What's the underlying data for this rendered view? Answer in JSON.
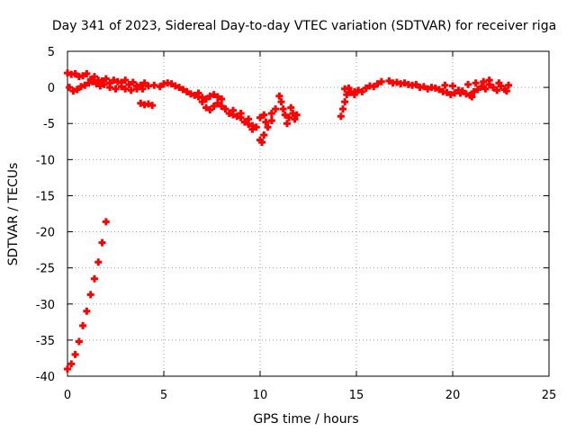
{
  "chart_data": {
    "type": "scatter",
    "title": "Day 341 of 2023, Sidereal Day-to-day VTEC variation (SDTVAR) for receiver riga",
    "xlabel": "GPS time / hours",
    "ylabel": "SDTVAR / TECUs",
    "xlim": [
      0,
      25
    ],
    "ylim": [
      -40,
      5
    ],
    "x_ticks": [
      0,
      5,
      10,
      15,
      20,
      25
    ],
    "y_ticks": [
      -40,
      -35,
      -30,
      -25,
      -20,
      -15,
      -10,
      -5,
      0,
      5
    ],
    "grid": true,
    "marker_color": "#ff0000",
    "series": [
      {
        "name": "SDTVAR",
        "points": [
          [
            0.0,
            -39.0
          ],
          [
            0.2,
            -38.3
          ],
          [
            0.4,
            -37.0
          ],
          [
            0.6,
            -35.2
          ],
          [
            0.8,
            -33.0
          ],
          [
            1.0,
            -31.0
          ],
          [
            1.2,
            -28.7
          ],
          [
            1.4,
            -26.5
          ],
          [
            1.6,
            -24.2
          ],
          [
            1.8,
            -21.5
          ],
          [
            2.0,
            -18.6
          ],
          [
            0.0,
            2.0
          ],
          [
            0.2,
            1.8
          ],
          [
            0.4,
            1.9
          ],
          [
            0.6,
            1.5
          ],
          [
            0.8,
            1.6
          ],
          [
            1.0,
            1.9
          ],
          [
            1.2,
            1.1
          ],
          [
            1.4,
            1.5
          ],
          [
            1.6,
            1.0
          ],
          [
            1.8,
            0.9
          ],
          [
            0.1,
            0.0
          ],
          [
            0.3,
            -0.5
          ],
          [
            0.5,
            -0.3
          ],
          [
            0.7,
            0.1
          ],
          [
            0.9,
            0.3
          ],
          [
            1.1,
            0.6
          ],
          [
            1.3,
            0.8
          ],
          [
            1.5,
            0.5
          ],
          [
            1.7,
            0.2
          ],
          [
            1.9,
            0.4
          ],
          [
            2.0,
            1.2
          ],
          [
            2.2,
            0.6
          ],
          [
            2.4,
            1.0
          ],
          [
            2.6,
            0.8
          ],
          [
            2.8,
            0.7
          ],
          [
            3.0,
            1.0
          ],
          [
            3.2,
            0.4
          ],
          [
            3.4,
            0.7
          ],
          [
            3.6,
            0.2
          ],
          [
            3.8,
            0.3
          ],
          [
            4.0,
            0.6
          ],
          [
            2.2,
            0.0
          ],
          [
            2.5,
            -0.2
          ],
          [
            2.8,
            0.1
          ],
          [
            3.0,
            -0.2
          ],
          [
            3.3,
            -0.4
          ],
          [
            3.6,
            -0.2
          ],
          [
            3.9,
            -0.2
          ],
          [
            3.8,
            -2.2
          ],
          [
            4.0,
            -2.4
          ],
          [
            4.2,
            -2.3
          ],
          [
            4.4,
            -2.5
          ],
          [
            4.2,
            0.2
          ],
          [
            4.5,
            0.3
          ],
          [
            4.8,
            0.1
          ],
          [
            5.0,
            0.5
          ],
          [
            5.2,
            0.6
          ],
          [
            5.4,
            0.5
          ],
          [
            5.6,
            0.2
          ],
          [
            5.8,
            0.0
          ],
          [
            6.0,
            -0.3
          ],
          [
            6.2,
            -0.6
          ],
          [
            6.4,
            -0.9
          ],
          [
            6.6,
            -1.1
          ],
          [
            6.8,
            -1.3
          ],
          [
            7.0,
            -1.4
          ],
          [
            7.2,
            -1.6
          ],
          [
            7.4,
            -1.2
          ],
          [
            7.6,
            -1.0
          ],
          [
            7.8,
            -1.3
          ],
          [
            8.0,
            -1.6
          ],
          [
            6.8,
            -0.8
          ],
          [
            7.0,
            -2.0
          ],
          [
            7.2,
            -2.8
          ],
          [
            7.4,
            -3.1
          ],
          [
            7.6,
            -2.6
          ],
          [
            7.8,
            -2.2
          ],
          [
            8.0,
            -2.6
          ],
          [
            8.2,
            -3.0
          ],
          [
            8.4,
            -3.6
          ],
          [
            8.6,
            -3.8
          ],
          [
            8.8,
            -4.0
          ],
          [
            9.0,
            -4.2
          ],
          [
            9.2,
            -4.8
          ],
          [
            9.4,
            -5.1
          ],
          [
            9.6,
            -5.3
          ],
          [
            8.6,
            -3.2
          ],
          [
            9.0,
            -3.6
          ],
          [
            9.4,
            -4.4
          ],
          [
            9.6,
            -5.8
          ],
          [
            9.8,
            -5.5
          ],
          [
            10.0,
            -7.3
          ],
          [
            10.1,
            -7.6
          ],
          [
            10.2,
            -6.6
          ],
          [
            10.0,
            -4.2
          ],
          [
            10.2,
            -3.8
          ],
          [
            10.4,
            -5.5
          ],
          [
            10.6,
            -4.6
          ],
          [
            10.8,
            -3.0
          ],
          [
            10.6,
            -3.6
          ],
          [
            10.3,
            -4.8
          ],
          [
            11.0,
            -1.2
          ],
          [
            11.1,
            -2.0
          ],
          [
            11.2,
            -3.0
          ],
          [
            11.3,
            -3.8
          ],
          [
            11.5,
            -4.2
          ],
          [
            11.7,
            -3.6
          ],
          [
            11.6,
            -2.8
          ],
          [
            11.8,
            -4.4
          ],
          [
            11.4,
            -5.0
          ],
          [
            11.9,
            -3.8
          ],
          [
            14.2,
            -4.0
          ],
          [
            14.3,
            -3.0
          ],
          [
            14.4,
            -2.0
          ],
          [
            14.5,
            -1.0
          ],
          [
            14.7,
            -0.7
          ],
          [
            14.9,
            -1.0
          ],
          [
            15.1,
            -0.4
          ],
          [
            15.3,
            -0.6
          ],
          [
            15.5,
            -0.1
          ],
          [
            15.7,
            0.2
          ],
          [
            15.9,
            0.1
          ],
          [
            16.1,
            0.5
          ],
          [
            16.3,
            0.8
          ],
          [
            14.4,
            -0.2
          ],
          [
            14.6,
            -0.1
          ],
          [
            14.9,
            -0.6
          ],
          [
            16.7,
            0.9
          ],
          [
            16.9,
            0.6
          ],
          [
            17.1,
            0.7
          ],
          [
            17.3,
            0.5
          ],
          [
            17.5,
            0.6
          ],
          [
            17.7,
            0.4
          ],
          [
            17.9,
            0.3
          ],
          [
            18.1,
            0.4
          ],
          [
            18.3,
            0.0
          ],
          [
            18.5,
            0.1
          ],
          [
            18.7,
            -0.2
          ],
          [
            18.9,
            0.0
          ],
          [
            19.1,
            -0.1
          ],
          [
            19.3,
            -0.3
          ],
          [
            19.5,
            -0.6
          ],
          [
            19.7,
            -0.7
          ],
          [
            19.9,
            -1.0
          ],
          [
            20.1,
            -0.8
          ],
          [
            20.3,
            -0.4
          ],
          [
            20.5,
            -0.5
          ],
          [
            20.7,
            -0.9
          ],
          [
            20.9,
            -1.1
          ],
          [
            21.1,
            -0.6
          ],
          [
            21.3,
            -0.3
          ],
          [
            21.5,
            0.1
          ],
          [
            21.7,
            -0.2
          ],
          [
            21.9,
            0.4
          ],
          [
            22.1,
            0.0
          ],
          [
            22.3,
            -0.4
          ],
          [
            22.5,
            0.2
          ],
          [
            22.7,
            -0.3
          ],
          [
            22.9,
            0.3
          ],
          [
            19.6,
            0.3
          ],
          [
            20.0,
            0.2
          ],
          [
            20.4,
            -0.8
          ],
          [
            20.8,
            0.4
          ],
          [
            21.0,
            -1.3
          ],
          [
            21.2,
            0.6
          ],
          [
            21.6,
            0.8
          ],
          [
            21.9,
            1.0
          ],
          [
            22.4,
            0.6
          ],
          [
            22.8,
            -0.5
          ]
        ]
      }
    ]
  }
}
